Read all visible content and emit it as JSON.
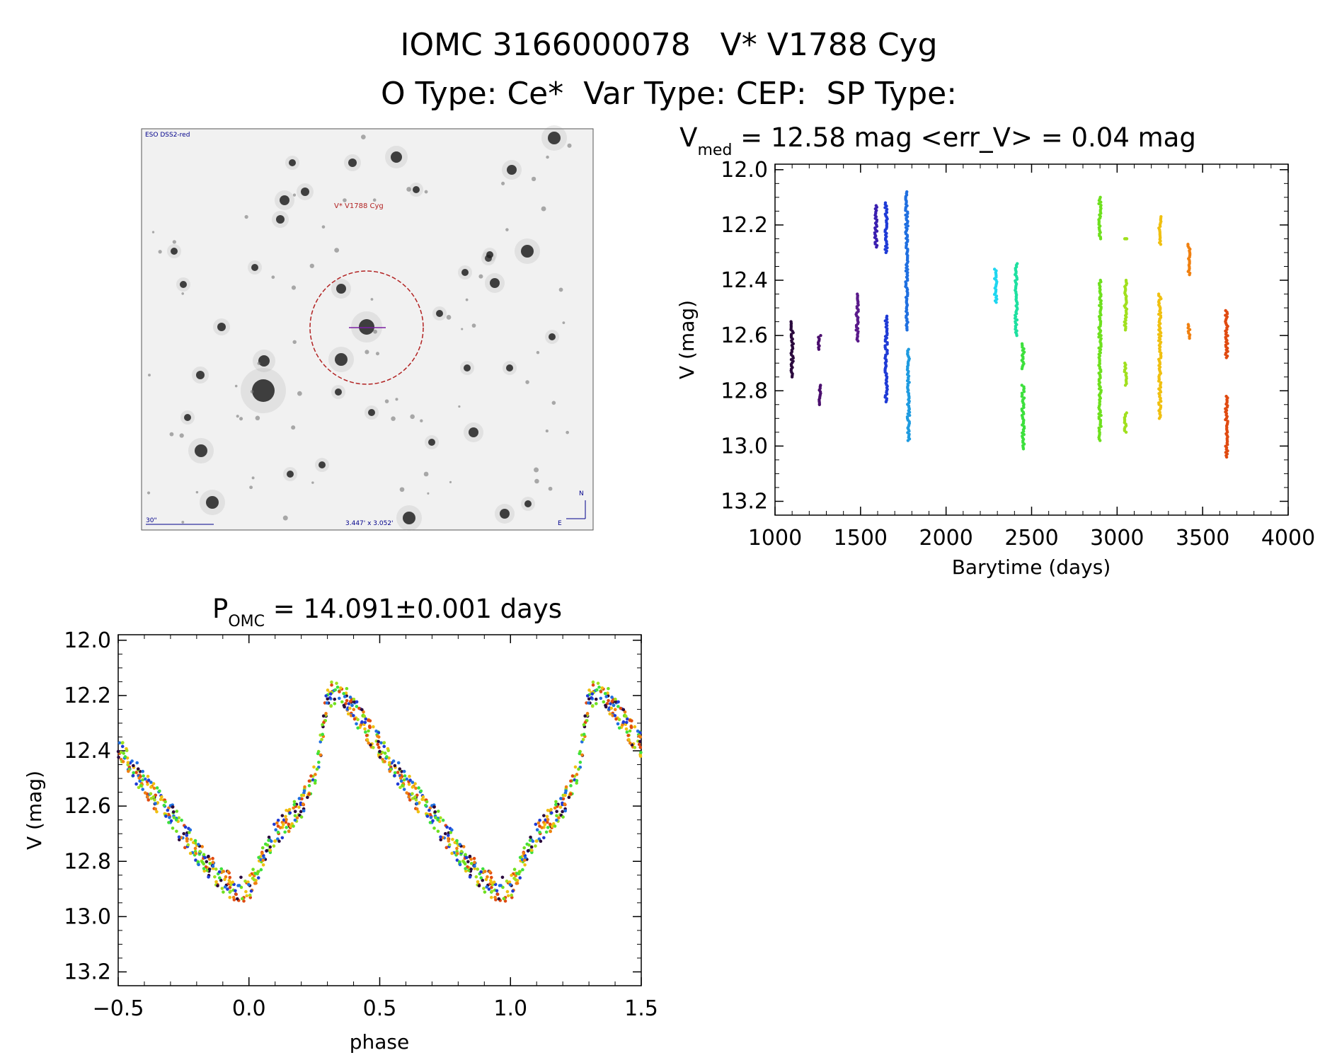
{
  "header": {
    "line1": "IOMC 3166000078   V* V1788 Cyg",
    "line2": "O Type: Ce*  Var Type: CEP:  SP Type:"
  },
  "finder": {
    "survey_label": "ESO DSS2-red",
    "target_label": "V* V1788 Cyg",
    "scale_label": "30\"",
    "fov_label": "3.447' x 3.052'",
    "north_label": "N",
    "east_label": "E",
    "colors": {
      "circle": "#b22222",
      "labels": "#00008b",
      "target": "#b22222"
    }
  },
  "chart_data": [
    {
      "id": "lightcurve",
      "type": "scatter",
      "title_main": "V",
      "title_sub": "med",
      "title_rest": " = 12.58 mag <err_V> = 0.04 mag",
      "xlabel": "Barytime (days)",
      "ylabel": "V (mag)",
      "xlim": [
        1000,
        4000
      ],
      "ylim": [
        13.25,
        11.98
      ],
      "xticks": [
        1000,
        1500,
        2000,
        2500,
        3000,
        3500,
        4000
      ],
      "yticks": [
        12.0,
        12.2,
        12.4,
        12.6,
        12.8,
        13.0,
        13.2
      ],
      "grid": false,
      "groups": [
        {
          "t": 1100,
          "color": "#2b0a3d",
          "ranges": [
            [
              12.55,
              12.75
            ]
          ]
        },
        {
          "t": 1260,
          "color": "#4b0f6e",
          "ranges": [
            [
              12.6,
              12.65
            ],
            [
              12.78,
              12.85
            ]
          ]
        },
        {
          "t": 1480,
          "color": "#5a1a8a",
          "ranges": [
            [
              12.45,
              12.62
            ]
          ]
        },
        {
          "t": 1590,
          "color": "#3a1fb0",
          "ranges": [
            [
              12.13,
              12.28
            ]
          ]
        },
        {
          "t": 1650,
          "color": "#1f3bd6",
          "ranges": [
            [
              12.12,
              12.3
            ],
            [
              12.53,
              12.84
            ]
          ]
        },
        {
          "t": 1770,
          "color": "#1f6fe0",
          "ranges": [
            [
              12.08,
              12.58
            ]
          ]
        },
        {
          "t": 1780,
          "color": "#1e9be0",
          "ranges": [
            [
              12.65,
              12.98
            ]
          ]
        },
        {
          "t": 2290,
          "color": "#1ed6f0",
          "ranges": [
            [
              12.36,
              12.48
            ]
          ]
        },
        {
          "t": 2410,
          "color": "#1ee0a0",
          "ranges": [
            [
              12.34,
              12.6
            ]
          ]
        },
        {
          "t": 2450,
          "color": "#3de03d",
          "ranges": [
            [
              12.78,
              13.01
            ],
            [
              12.63,
              12.72
            ]
          ]
        },
        {
          "t": 2900,
          "color": "#6ee01e",
          "ranges": [
            [
              12.1,
              12.25
            ],
            [
              12.4,
              12.6
            ],
            [
              12.6,
              12.98
            ]
          ]
        },
        {
          "t": 3050,
          "color": "#a0e01e",
          "ranges": [
            [
              12.25,
              12.25
            ],
            [
              12.4,
              12.58
            ],
            [
              12.7,
              12.78
            ],
            [
              12.88,
              12.95
            ]
          ]
        },
        {
          "t": 3250,
          "color": "#f0c010",
          "ranges": [
            [
              12.17,
              12.27
            ],
            [
              12.45,
              12.9
            ]
          ]
        },
        {
          "t": 3420,
          "color": "#f08010",
          "ranges": [
            [
              12.27,
              12.38
            ],
            [
              12.56,
              12.61
            ]
          ]
        },
        {
          "t": 3640,
          "color": "#e04a10",
          "ranges": [
            [
              12.51,
              12.68
            ],
            [
              12.82,
              13.04
            ]
          ]
        }
      ]
    },
    {
      "id": "phased",
      "type": "scatter",
      "title_main": "P",
      "title_sub": "OMC",
      "title_rest": " = 14.091±0.001 days",
      "xlabel": "phase",
      "ylabel": "V (mag)",
      "xlim": [
        -0.5,
        1.5
      ],
      "ylim": [
        13.25,
        11.98
      ],
      "xticks": [
        -0.5,
        0.0,
        0.5,
        1.0,
        1.5
      ],
      "xticklabels": [
        "−0.5",
        "0.0",
        "0.5",
        "1.0",
        "1.5"
      ],
      "yticks": [
        12.0,
        12.2,
        12.4,
        12.6,
        12.8,
        13.0,
        13.2
      ],
      "period_days": 14.091,
      "curve": {
        "phase": [
          0.0,
          0.05,
          0.1,
          0.15,
          0.2,
          0.25,
          0.28,
          0.3,
          0.35,
          0.4,
          0.45,
          0.5,
          0.55,
          0.6,
          0.65,
          0.7,
          0.75,
          0.8,
          0.85,
          0.9,
          0.95,
          1.0
        ],
        "mag": [
          12.9,
          12.8,
          12.7,
          12.65,
          12.6,
          12.5,
          12.35,
          12.2,
          12.18,
          12.25,
          12.32,
          12.38,
          12.45,
          12.52,
          12.58,
          12.63,
          12.7,
          12.76,
          12.82,
          12.87,
          12.9,
          12.9
        ]
      },
      "colors": [
        "#1f3bd6",
        "#1f6fe0",
        "#3de03d",
        "#6ee01e",
        "#a0e01e",
        "#f0c010",
        "#f08010",
        "#e04a10",
        "#2b0a3d"
      ]
    }
  ]
}
